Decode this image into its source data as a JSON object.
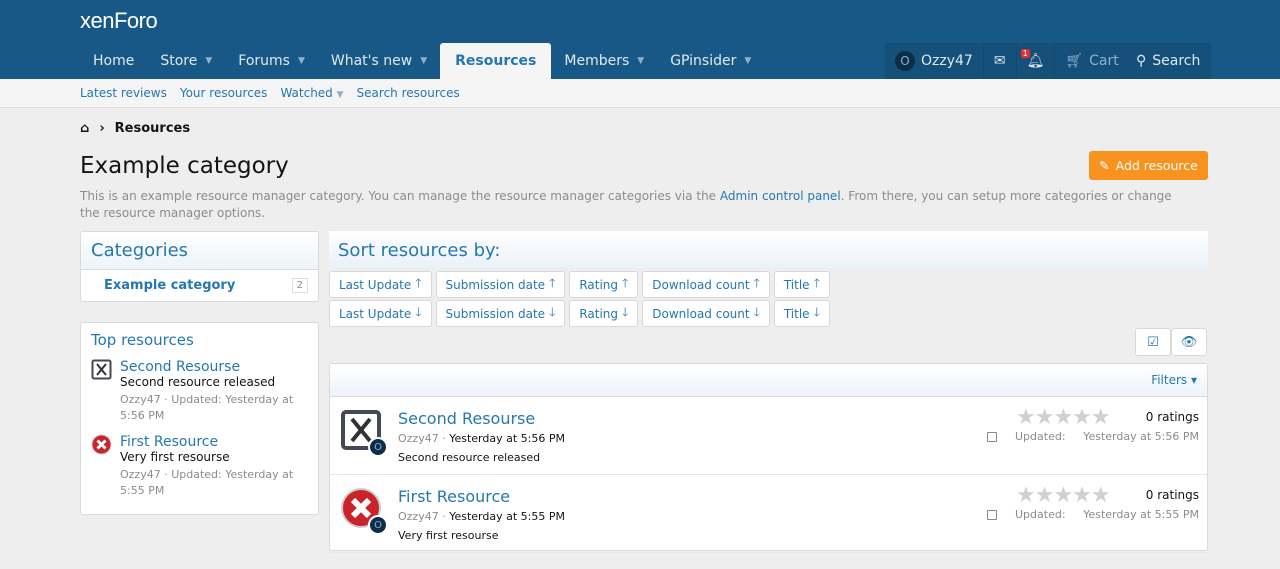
{
  "header": {
    "logo": "xenForo",
    "nav": [
      {
        "label": "Home",
        "caret": false
      },
      {
        "label": "Store",
        "caret": true
      },
      {
        "label": "Forums",
        "caret": true
      },
      {
        "label": "What's new",
        "caret": true
      },
      {
        "label": "Resources",
        "caret": false,
        "selected": true
      },
      {
        "label": "Members",
        "caret": true
      },
      {
        "label": "GPinsider",
        "caret": true
      }
    ],
    "user": {
      "avatar_letter": "O",
      "name": "Ozzy47"
    },
    "alerts_badge": "1",
    "cart": "Cart",
    "search": "Search"
  },
  "subnav": [
    {
      "label": "Latest reviews"
    },
    {
      "label": "Your resources"
    },
    {
      "label": "Watched",
      "caret": true
    },
    {
      "label": "Search resources"
    }
  ],
  "breadcrumb": {
    "current": "Resources"
  },
  "page": {
    "title": "Example category",
    "desc_before": "This is an example resource manager category. You can manage the resource manager categories via the ",
    "desc_link": "Admin control panel",
    "desc_after": ". From there, you can setup more categories or change the resource manager options.",
    "add_button": "Add resource"
  },
  "categories": {
    "title": "Categories",
    "items": [
      {
        "label": "Example category",
        "count": "2"
      }
    ]
  },
  "top_resources": {
    "title": "Top resources",
    "items": [
      {
        "title": "Second Resourse",
        "desc": "Second resource released",
        "meta": "Ozzy47 · Updated: Yesterday at 5:56 PM"
      },
      {
        "title": "First Resource",
        "desc": "Very first resourse",
        "meta": "Ozzy47 · Updated: Yesterday at 5:55 PM"
      }
    ]
  },
  "sort": {
    "title": "Sort resources by:",
    "options": [
      "Last Update",
      "Submission date",
      "Rating",
      "Download count",
      "Title"
    ],
    "asc_arrow": "🡑",
    "desc_arrow": "🡓"
  },
  "filters": "Filters ▾",
  "resources": [
    {
      "title": "Second Resourse",
      "author": "Ozzy47",
      "date": "Yesterday at 5:56 PM",
      "desc": "Second resource released",
      "ratings": "0 ratings",
      "rating": 0,
      "updated_label": "Updated:",
      "updated": "Yesterday at 5:56 PM",
      "avatar_letter": "O",
      "icon": "x-box-icon"
    },
    {
      "title": "First Resource",
      "author": "Ozzy47",
      "date": "Yesterday at 5:55 PM",
      "desc": "Very first resourse",
      "ratings": "0 ratings",
      "rating": 0,
      "updated_label": "Updated:",
      "updated": "Yesterday at 5:55 PM",
      "avatar_letter": "O",
      "icon": "red-x-circle-icon"
    }
  ],
  "colors": {
    "header": "#185886",
    "link": "#2577b1",
    "accent": "#f7931e"
  }
}
